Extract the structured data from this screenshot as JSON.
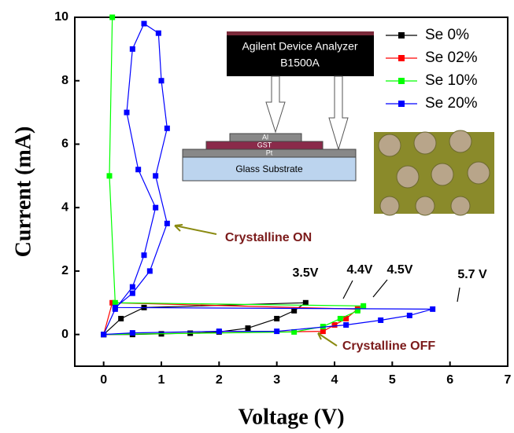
{
  "chart_data": {
    "type": "line",
    "x_label": "Voltage (V)",
    "y_label": "Current (mA)",
    "xlim": [
      -0.5,
      7
    ],
    "xticks": [
      0,
      1,
      2,
      3,
      4,
      5,
      6,
      7
    ],
    "ylim": [
      -1,
      10
    ],
    "yticks": [
      0,
      2,
      4,
      6,
      8,
      10
    ],
    "legend": "top-right",
    "series": [
      {
        "name": "Se 0%",
        "color": "#000000",
        "x": [
          0,
          0.5,
          1,
          1.5,
          2,
          2.5,
          3,
          3.3,
          3.5,
          0.7,
          0.3,
          0
        ],
        "values": [
          0,
          0,
          0.02,
          0.04,
          0.08,
          0.2,
          0.5,
          0.75,
          1.0,
          0.85,
          0.5,
          0
        ]
      },
      {
        "name": "Se 02%",
        "color": "#ff0000",
        "x": [
          0,
          3.8,
          4.0,
          4.2,
          4.4,
          0.15,
          0
        ],
        "values": [
          0,
          0.1,
          0.3,
          0.5,
          0.8,
          1.0,
          0
        ]
      },
      {
        "name": "Se 10%",
        "color": "#00ff00",
        "x": [
          0,
          3.3,
          3.8,
          4.1,
          4.4,
          4.5,
          0.2,
          0.1,
          0.15
        ],
        "values": [
          0,
          0.08,
          0.25,
          0.5,
          0.75,
          0.9,
          1.0,
          5,
          10
        ]
      },
      {
        "name": "Se 20%",
        "color": "#0000ff",
        "x": [
          0,
          0.5,
          2,
          3,
          4.2,
          4.8,
          5.3,
          5.7,
          0.2,
          0.5,
          0.8,
          1.1,
          0.9,
          1.1,
          1.0,
          0.95,
          0.7,
          0.5,
          0.4,
          0.6,
          0.9,
          0.7,
          0.5,
          0.2,
          0
        ],
        "values": [
          0,
          0.05,
          0.1,
          0.1,
          0.3,
          0.45,
          0.6,
          0.8,
          0.85,
          1.3,
          2,
          3.5,
          5,
          6.5,
          8,
          9.5,
          9.8,
          9,
          7,
          5.2,
          4,
          2.5,
          1.5,
          0.8,
          0
        ]
      }
    ],
    "annotations": [
      "3.5V",
      "4.4V",
      "4.5V",
      "5.7 V",
      "Crystalline ON",
      "Crystalline OFF"
    ],
    "inset": {
      "instrument": [
        "Agilent Device Analyzer",
        "B1500A"
      ],
      "layers": [
        "Al",
        "GST",
        "Pt",
        "Glass Substrate"
      ]
    }
  }
}
